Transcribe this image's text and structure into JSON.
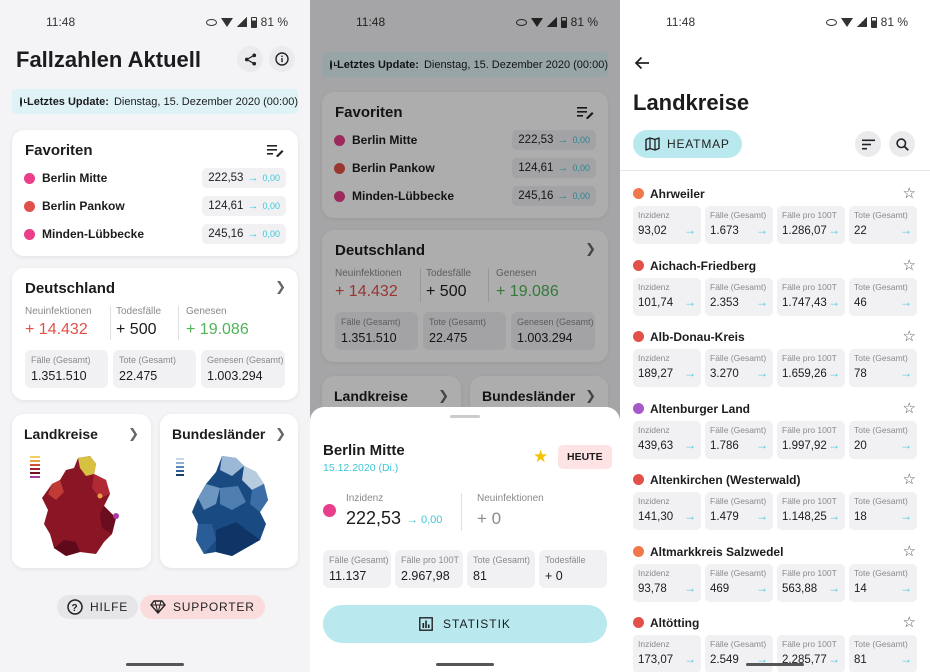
{
  "status": {
    "time": "11:48",
    "battery": "81 %"
  },
  "colors": {
    "accent": "#3fc6d6",
    "red": "#e2504a",
    "green": "#4fb357",
    "pink": "#e83e8c",
    "orange": "#f0784a",
    "purple": "#a659c9",
    "chip_bg": "#b9e9ef"
  },
  "screen1": {
    "title": "Fallzahlen Aktuell",
    "update_label": "Letztes Update:",
    "update_value": "Dienstag, 15. Dezember 2020 (00:00)",
    "favorites": {
      "title": "Favoriten",
      "items": [
        {
          "name": "Berlin Mitte",
          "value": "222,53",
          "change": "0,00",
          "color": "#e83e8c"
        },
        {
          "name": "Berlin Pankow",
          "value": "124,61",
          "change": "0,00",
          "color": "#e2504a"
        },
        {
          "name": "Minden-Lübbecke",
          "value": "245,16",
          "change": "0,00",
          "color": "#e83e8c"
        }
      ]
    },
    "germany": {
      "title": "Deutschland",
      "neu_label": "Neuinfektionen",
      "neu_value": "+ 14.432",
      "tod_label": "Todesfälle",
      "tod_value": "+ 500",
      "gen_label": "Genesen",
      "gen_value": "+ 19.086",
      "boxes": [
        {
          "label": "Fälle (Gesamt)",
          "value": "1.351.510"
        },
        {
          "label": "Tote (Gesamt)",
          "value": "22.475"
        },
        {
          "label": "Genesen (Gesamt)",
          "value": "1.003.294"
        }
      ]
    },
    "landkreise": "Landkreise",
    "bundeslaender": "Bundesländer",
    "help": "HILFE",
    "supporter": "SUPPORTER"
  },
  "screen2": {
    "title": "Berlin Mitte",
    "date": "15.12.2020 (Di.)",
    "today_label": "HEUTE",
    "inz_label": "Inzidenz",
    "inz_value": "222,53",
    "inz_change": "0,00",
    "neu_label": "Neuinfektionen",
    "neu_value": "+ 0",
    "boxes": [
      {
        "label": "Fälle (Gesamt)",
        "value": "11.137"
      },
      {
        "label": "Fälle pro 100T",
        "value": "2.967,98"
      },
      {
        "label": "Tote (Gesamt)",
        "value": "81"
      },
      {
        "label": "Todesfälle",
        "value": "+ 0"
      }
    ],
    "statistik": "STATISTIK"
  },
  "screen3": {
    "title": "Landkreise",
    "heatmap": "HEATMAP",
    "labels": {
      "inz": "Inzidenz",
      "faelle": "Fälle (Gesamt)",
      "pro": "Fälle pro 100T",
      "tote": "Tote (Gesamt)"
    },
    "rows": [
      {
        "name": "Ahrweiler",
        "color": "#f0784a",
        "inz": "93,02",
        "faelle": "1.673",
        "pro": "1.286,07",
        "tote": "22"
      },
      {
        "name": "Aichach-Friedberg",
        "color": "#e2504a",
        "inz": "101,74",
        "faelle": "2.353",
        "pro": "1.747,43",
        "tote": "46"
      },
      {
        "name": "Alb-Donau-Kreis",
        "color": "#e2504a",
        "inz": "189,27",
        "faelle": "3.270",
        "pro": "1.659,26",
        "tote": "78"
      },
      {
        "name": "Altenburger Land",
        "color": "#a659c9",
        "inz": "439,63",
        "faelle": "1.786",
        "pro": "1.997,92",
        "tote": "20"
      },
      {
        "name": "Altenkirchen (Westerwald)",
        "color": "#e2504a",
        "inz": "141,30",
        "faelle": "1.479",
        "pro": "1.148,25",
        "tote": "18"
      },
      {
        "name": "Altmarkkreis Salzwedel",
        "color": "#f0784a",
        "inz": "93,78",
        "faelle": "469",
        "pro": "563,88",
        "tote": "14"
      },
      {
        "name": "Altötting",
        "color": "#e2504a",
        "inz": "173,07",
        "faelle": "2.549",
        "pro": "2.285,77",
        "tote": "81"
      }
    ]
  }
}
